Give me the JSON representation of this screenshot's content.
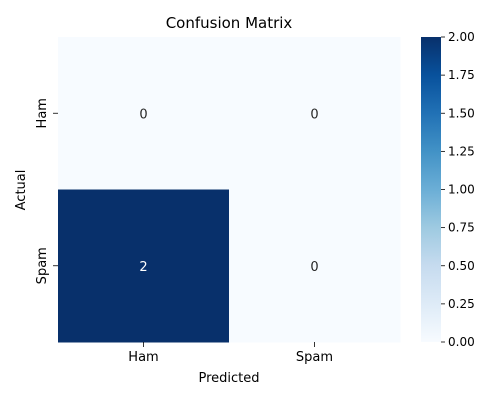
{
  "chart_data": {
    "type": "heatmap",
    "title": "Confusion Matrix",
    "xlabel": "Predicted",
    "ylabel": "Actual",
    "x_categories": [
      "Ham",
      "Spam"
    ],
    "y_categories": [
      "Ham",
      "Spam"
    ],
    "values": [
      [
        0,
        0
      ],
      [
        2,
        0
      ]
    ],
    "colormap": "Blues",
    "color_range": [
      0,
      2
    ],
    "colorbar_ticks": [
      "0.00",
      "0.25",
      "0.50",
      "0.75",
      "1.00",
      "1.25",
      "1.50",
      "1.75",
      "2.00"
    ],
    "annotated": true,
    "grid": false,
    "colors": {
      "low": "#f7fbff",
      "high": "#08306b",
      "annot_on_dark": "#ffffff",
      "annot_on_light": "#262626"
    }
  }
}
